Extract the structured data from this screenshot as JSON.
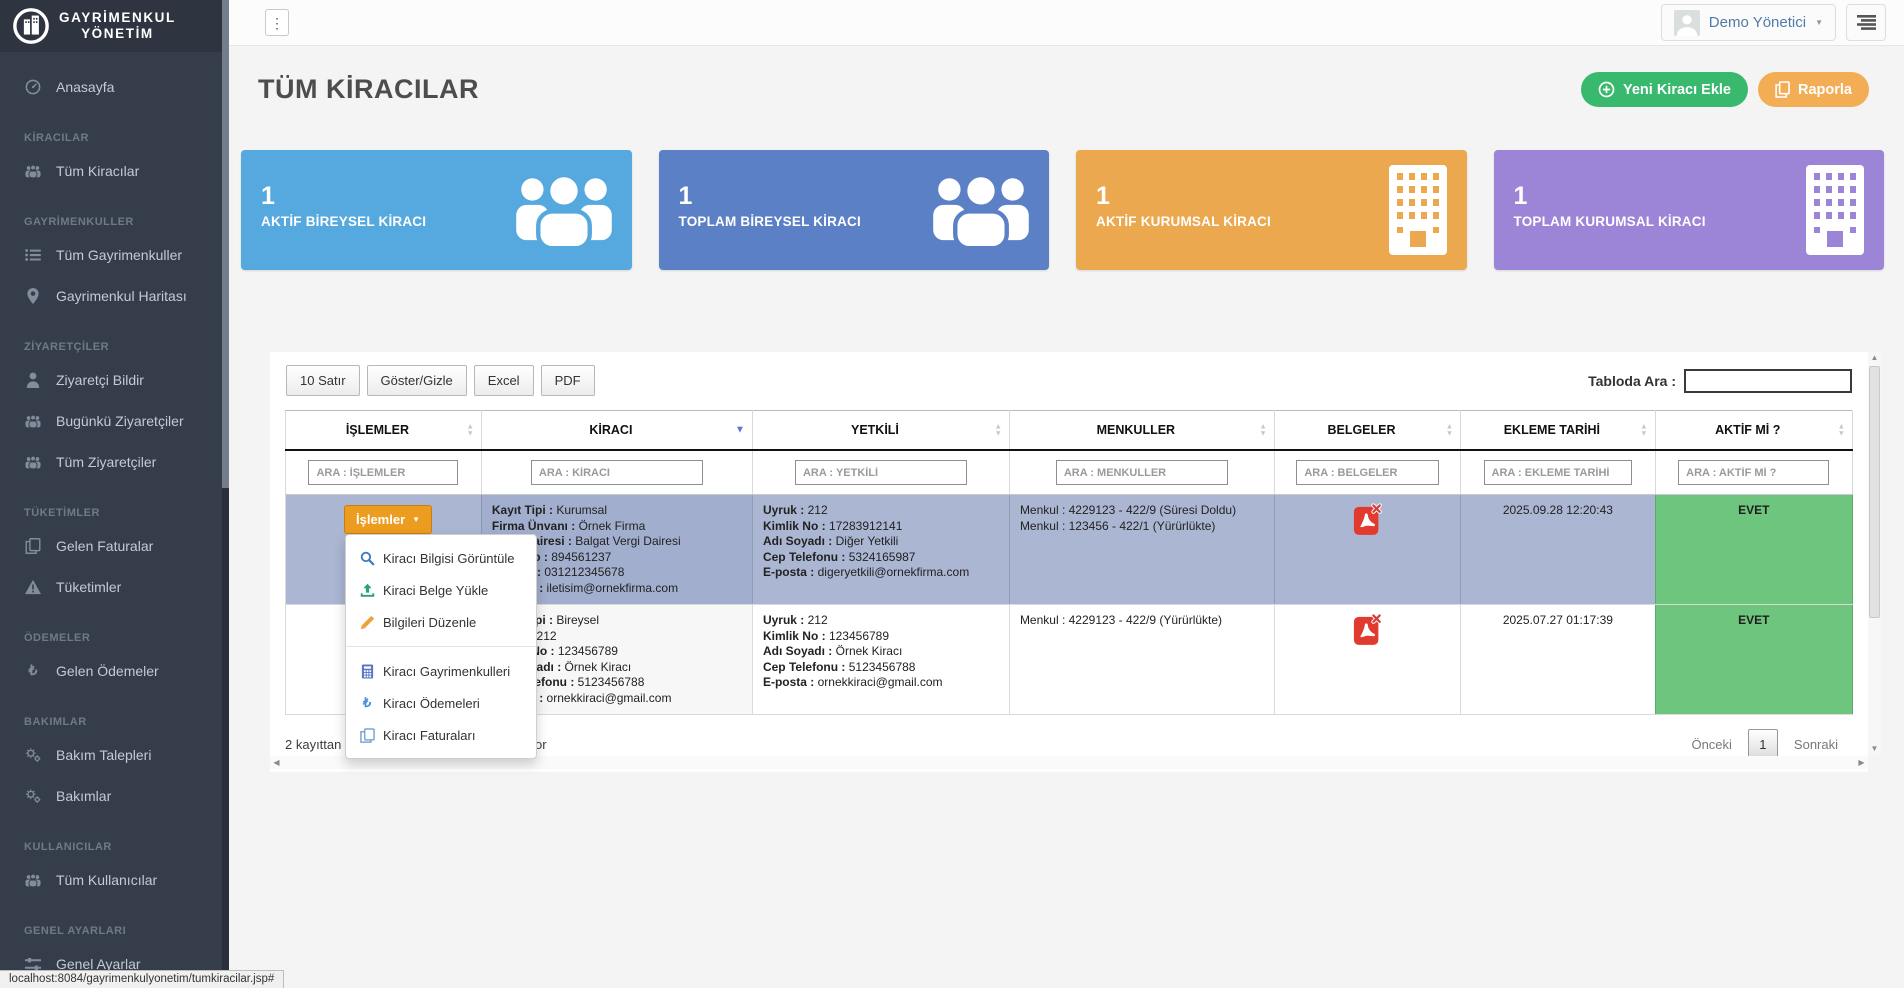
{
  "app": {
    "brand_line1": "GAYRİMENKUL",
    "brand_line2": "YÖNETİM",
    "status_url": "localhost:8084/gayrimenkulyonetim/tumkiracilar.jsp#"
  },
  "header": {
    "user_name": "Demo Yönetici",
    "menu_dots": "⋮"
  },
  "sidebar": {
    "items": [
      {
        "kind": "link",
        "icon": "dashboard-icon",
        "label": "Anasayfa"
      },
      {
        "kind": "section",
        "label": "KİRACILAR"
      },
      {
        "kind": "link",
        "icon": "users-icon",
        "label": "Tüm Kiracılar"
      },
      {
        "kind": "section",
        "label": "GAYRİMENKULLER"
      },
      {
        "kind": "link",
        "icon": "list-icon",
        "label": "Tüm Gayrimenkuller"
      },
      {
        "kind": "link",
        "icon": "map-marker-icon",
        "label": "Gayrimenkul Haritası"
      },
      {
        "kind": "section",
        "label": "ZİYARETÇİLER"
      },
      {
        "kind": "link",
        "icon": "person-icon",
        "label": "Ziyaretçi Bildir"
      },
      {
        "kind": "link",
        "icon": "users-icon",
        "label": "Bugünkü Ziyaretçiler"
      },
      {
        "kind": "link",
        "icon": "users-icon",
        "label": "Tüm Ziyaretçiler"
      },
      {
        "kind": "section",
        "label": "TÜKETİMLER"
      },
      {
        "kind": "link",
        "icon": "invoice-icon",
        "label": "Gelen Faturalar"
      },
      {
        "kind": "link",
        "icon": "warning-icon",
        "label": "Tüketimler"
      },
      {
        "kind": "section",
        "label": "ÖDEMELER"
      },
      {
        "kind": "link",
        "icon": "lira-icon",
        "label": "Gelen Ödemeler"
      },
      {
        "kind": "section",
        "label": "BAKIMLAR"
      },
      {
        "kind": "link",
        "icon": "gears-icon",
        "label": "Bakım Talepleri"
      },
      {
        "kind": "link",
        "icon": "gears-icon",
        "label": "Bakımlar"
      },
      {
        "kind": "section",
        "label": "KULLANICILAR"
      },
      {
        "kind": "link",
        "icon": "users-icon",
        "label": "Tüm Kullanıcılar"
      },
      {
        "kind": "section",
        "label": "GENEL AYARLARI"
      },
      {
        "kind": "link",
        "icon": "settings-icon",
        "label": "Genel Ayarlar"
      }
    ]
  },
  "page": {
    "title": "TÜM KİRACILAR",
    "add_button": "Yeni Kiracı Ekle",
    "report_button": "Raporla"
  },
  "stats": [
    {
      "value": "1",
      "label": "AKTİF BİREYSEL KİRACI",
      "color": "#56a9de",
      "icon": "people-icon"
    },
    {
      "value": "1",
      "label": "TOPLAM BİREYSEL KİRACI",
      "color": "#5c80c6",
      "icon": "people-icon"
    },
    {
      "value": "1",
      "label": "AKTİF KURUMSAL KİRACI",
      "color": "#eca84e",
      "icon": "building-icon"
    },
    {
      "value": "1",
      "label": "TOPLAM KURUMSAL KİRACI",
      "color": "#9c84d6",
      "icon": "building-icon"
    }
  ],
  "table": {
    "buttons": [
      "10 Satır",
      "Göster/Gizle",
      "Excel",
      "PDF"
    ],
    "search_label": "Tabloda Ara :",
    "search_value": "",
    "columns": [
      {
        "label": "İŞLEMLER",
        "placeholder": "ARA : İŞLEMLER",
        "sort": "both",
        "width": "12.5%"
      },
      {
        "label": "KİRACI",
        "placeholder": "ARA : KİRACI",
        "sort": "desc",
        "width": "17.3%"
      },
      {
        "label": "YETKİLİ",
        "placeholder": "ARA : YETKİLİ",
        "sort": "both",
        "width": "16.4%"
      },
      {
        "label": "MENKULLER",
        "placeholder": "ARA : MENKULLER",
        "sort": "both",
        "width": "16.9%"
      },
      {
        "label": "BELGELER",
        "placeholder": "ARA : BELGELER",
        "sort": "both",
        "width": "11.9%"
      },
      {
        "label": "EKLEME TARİHİ",
        "placeholder": "ARA : EKLEME TARİHİ",
        "sort": "both",
        "width": "12.4%"
      },
      {
        "label": "AKTİF Mİ ?",
        "placeholder": "ARA : AKTİF Mİ ?",
        "sort": "both",
        "width": "12.6%"
      }
    ],
    "rows": [
      {
        "selected": true,
        "actions": "İşlemler",
        "kiraci": [
          [
            "Kayıt Tipi",
            "Kurumsal"
          ],
          [
            "Firma Ünvanı",
            "Örnek Firma"
          ],
          [
            "Vergi Dairesi",
            "Balgat Vergi Dairesi"
          ],
          [
            "Vergi No",
            "894561237"
          ],
          [
            "Telefon",
            "031212345678"
          ],
          [
            "E-posta",
            "iletisim@ornekfirma.com"
          ]
        ],
        "yetkili": [
          [
            "Uyruk",
            "212"
          ],
          [
            "Kimlik No",
            "17283912141"
          ],
          [
            "Adı Soyadı",
            "Diğer Yetkili"
          ],
          [
            "Cep Telefonu",
            "5324165987"
          ],
          [
            "E-posta",
            "digeryetkili@ornekfirma.com"
          ]
        ],
        "menkuller": [
          "Menkul : 4229123 - 422/9 (Süresi Doldu)",
          "Menkul : 123456 - 422/1 (Yürürlükte)"
        ],
        "belgeler_icon": "pdf-icon",
        "ekleme_tarihi": "2025.09.28 12:20:43",
        "aktif": "EVET"
      },
      {
        "selected": false,
        "actions": "",
        "kiraci": [
          [
            "Kayıt Tipi",
            "Bireysel"
          ],
          [
            "Uyruk",
            "212"
          ],
          [
            "Kimlik No",
            "123456789"
          ],
          [
            "Adı Soyadı",
            "Örnek Kiracı"
          ],
          [
            "Cep Telefonu",
            "5123456788"
          ],
          [
            "E-posta",
            "ornekkiraci@gmail.com"
          ]
        ],
        "yetkili": [
          [
            "Uyruk",
            "212"
          ],
          [
            "Kimlik No",
            "123456789"
          ],
          [
            "Adı Soyadı",
            "Örnek Kiracı"
          ],
          [
            "Cep Telefonu",
            "5123456788"
          ],
          [
            "E-posta",
            "ornekkiraci@gmail.com"
          ]
        ],
        "menkuller": [
          "Menkul : 4229123 - 422/9 (Yürürlükte)"
        ],
        "belgeler_icon": "pdf-icon",
        "ekleme_tarihi": "2025.07.27 01:17:39",
        "aktif": "EVET"
      }
    ],
    "info_text": "2 kayıttan 1 - 2 arasındaki kayıtlar gösteriliyor",
    "pagination": {
      "previous": "Önceki",
      "current_page": "1",
      "next": "Sonraki"
    }
  },
  "dropdown": {
    "button_label": "İşlemler",
    "items": [
      {
        "icon": "search-icon",
        "label": "Kiracı Bilgisi Görüntüle"
      },
      {
        "icon": "upload-icon",
        "label": "Kiraci Belge Yükle"
      },
      {
        "icon": "pencil-icon",
        "label": "Bilgileri Düzenle"
      },
      {
        "divider": true
      },
      {
        "icon": "building-calc-icon",
        "label": "Kiracı Gayrimenkulleri"
      },
      {
        "icon": "lira-icon",
        "label": "Kiracı Ödemeleri"
      },
      {
        "icon": "copy-icon",
        "label": "Kiracı Faturaları"
      }
    ]
  },
  "colors": {
    "sidebar_bg": "#363d4a",
    "card_blue_light": "#56a9de",
    "card_blue": "#5c80c6",
    "card_orange": "#eca84e",
    "card_purple": "#9c84d6",
    "button_green": "#39b96e",
    "button_orange": "#f3ae55",
    "actions_button_orange": "#ec9c1f",
    "selected_row": "#abb6d2",
    "active_green_cell": "#6ec57d"
  }
}
